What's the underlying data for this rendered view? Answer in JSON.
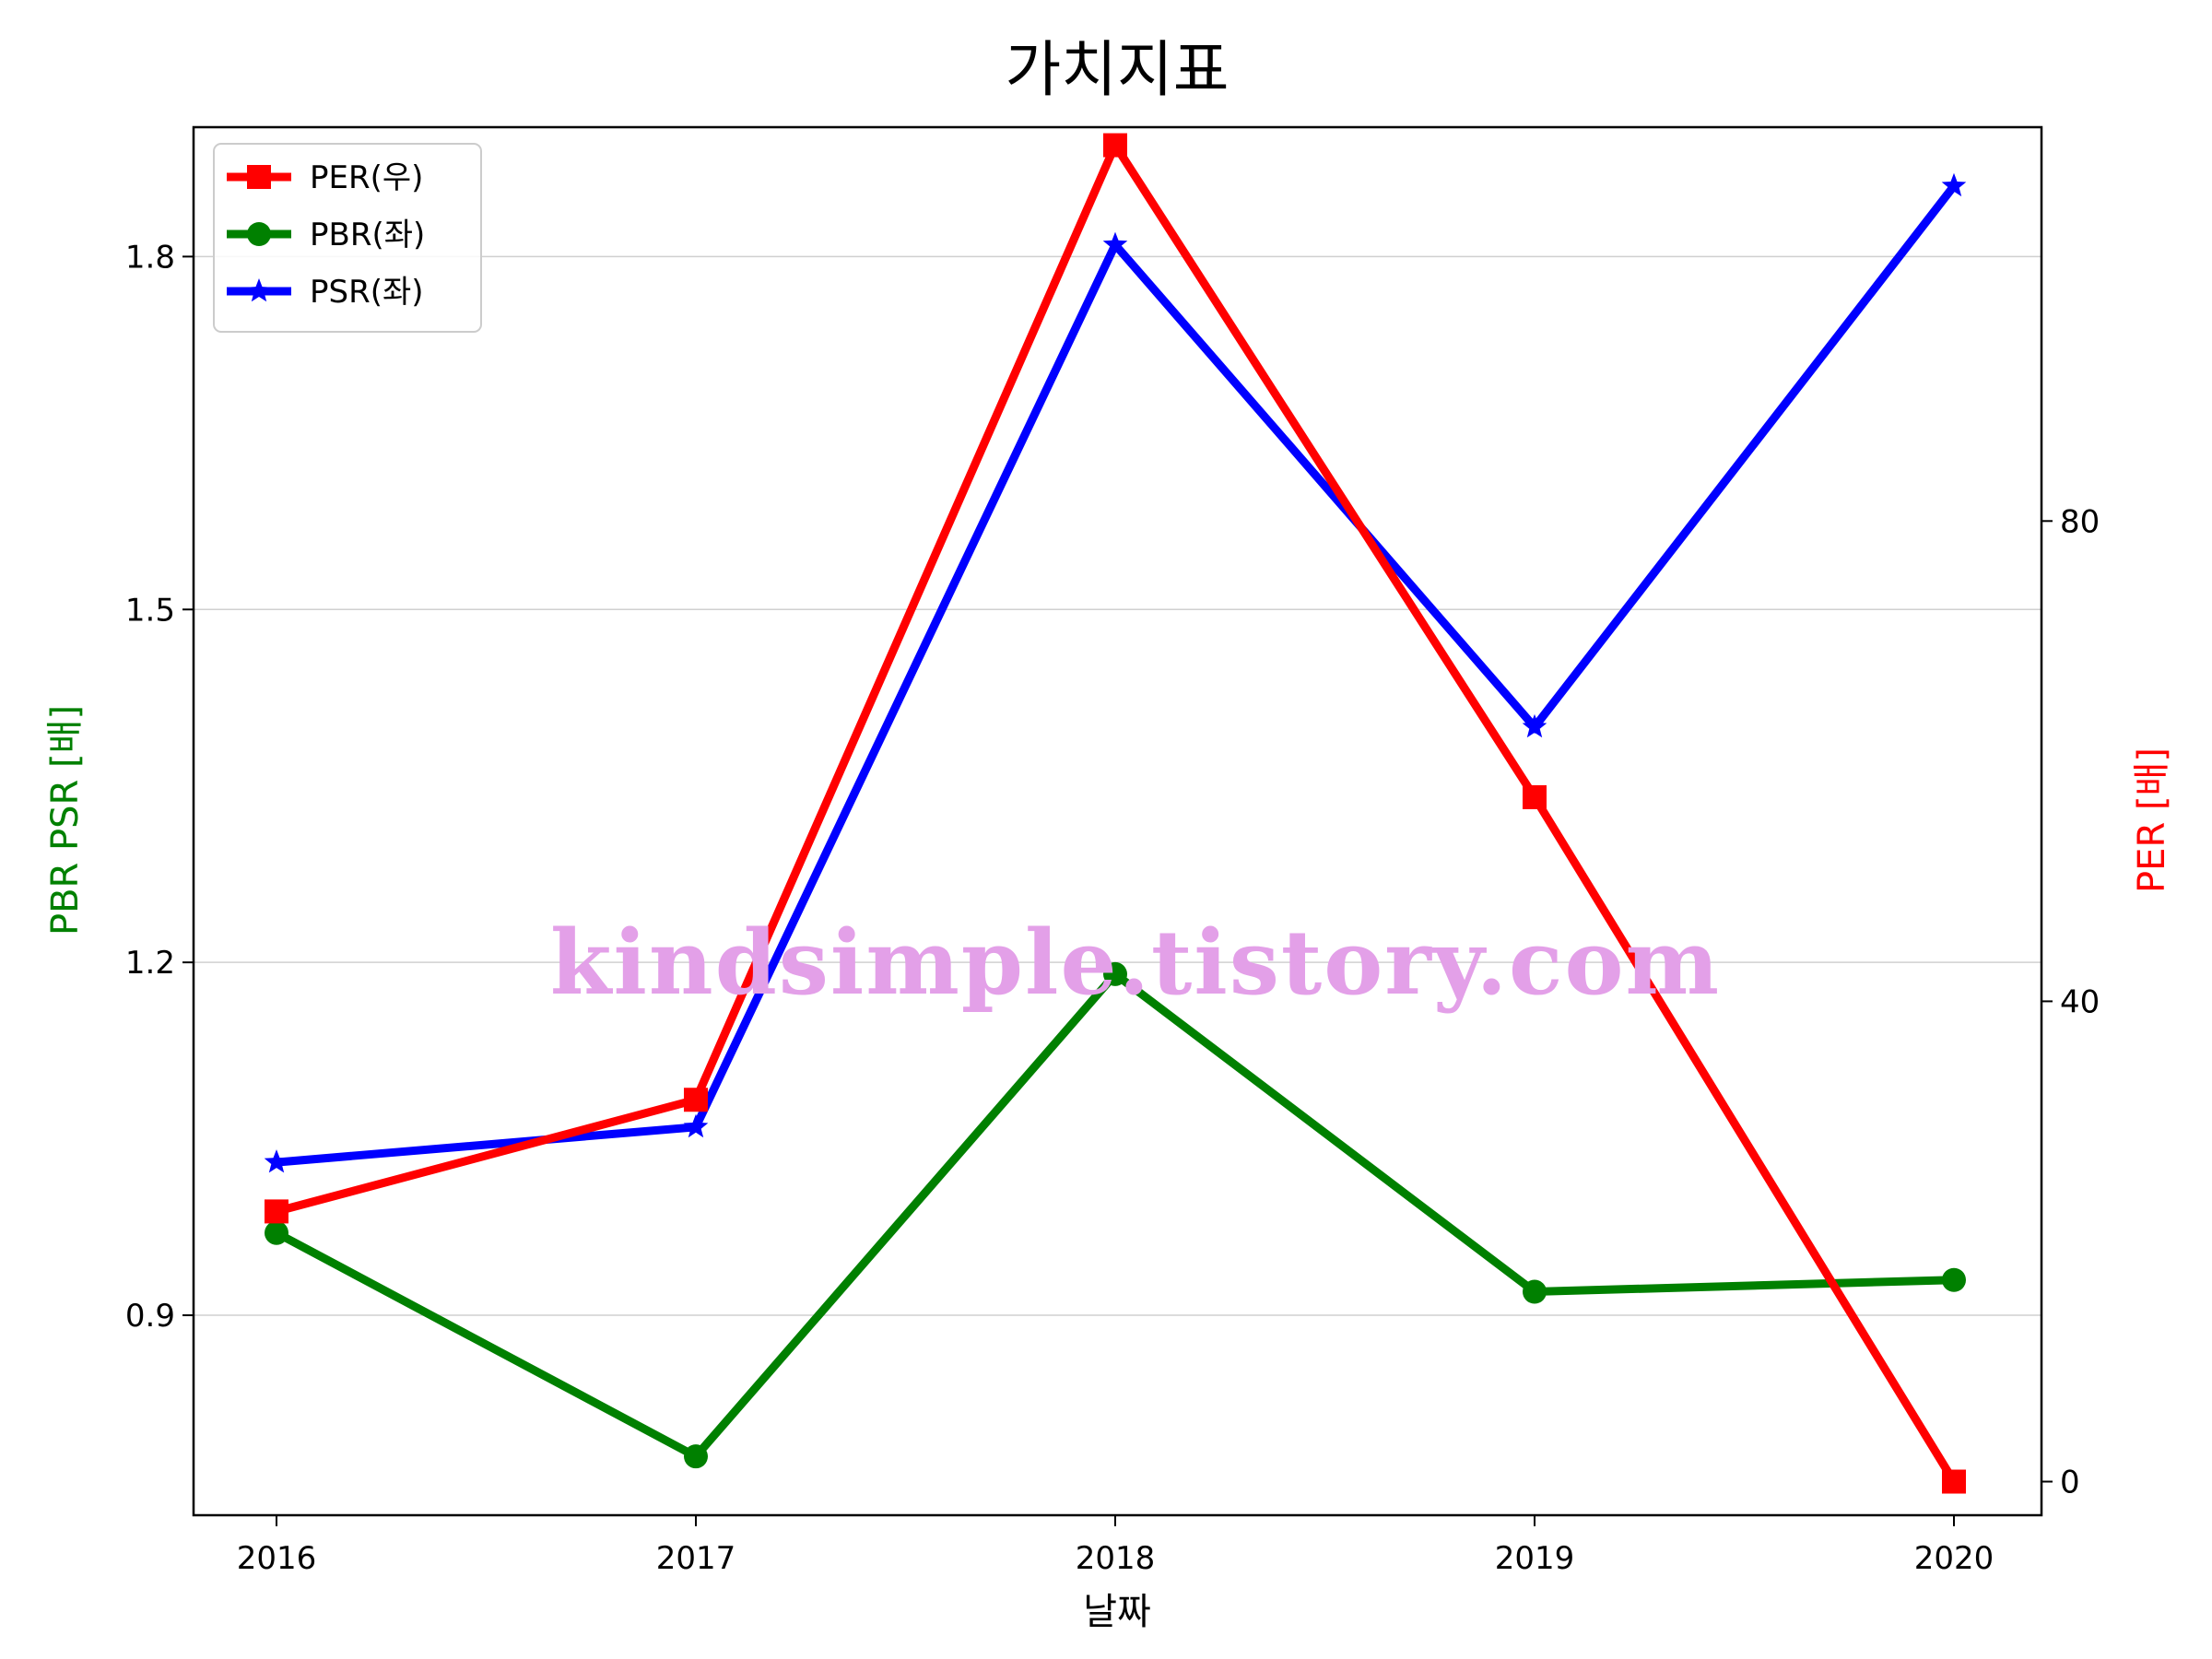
{
  "chart_data": {
    "type": "line",
    "title": "가치지표",
    "xlabel": "날짜",
    "ylabel_left": "PBR PSR [배]",
    "ylabel_right": "PER [배]",
    "categories": [
      "2016",
      "2017",
      "2018",
      "2019",
      "2020"
    ],
    "left_ylim": [
      0.73,
      1.91
    ],
    "left_ticks": [
      "0.9",
      "1.2",
      "1.5",
      "1.8"
    ],
    "right_ylim": [
      -2.8,
      112.8
    ],
    "right_ticks": [
      "0",
      "40",
      "80"
    ],
    "grid": "horizontal (left axis)",
    "legend_position": "top-left",
    "series": [
      {
        "name": "PER(우)",
        "axis": "right",
        "color": "#ff0000",
        "marker": "square",
        "values": [
          22.5,
          31.8,
          111.3,
          57.0,
          0.0
        ]
      },
      {
        "name": "PBR(좌)",
        "axis": "left",
        "color": "#008000",
        "marker": "circle",
        "values": [
          0.97,
          0.78,
          1.19,
          0.92,
          0.93
        ]
      },
      {
        "name": "PSR(좌)",
        "axis": "left",
        "color": "#0000ff",
        "marker": "star",
        "values": [
          1.03,
          1.06,
          1.81,
          1.4,
          1.86
        ]
      }
    ],
    "axis_label_colors": {
      "left": "#008000",
      "right": "#ff0000"
    }
  },
  "watermark": "kindsimple.tistory.com"
}
